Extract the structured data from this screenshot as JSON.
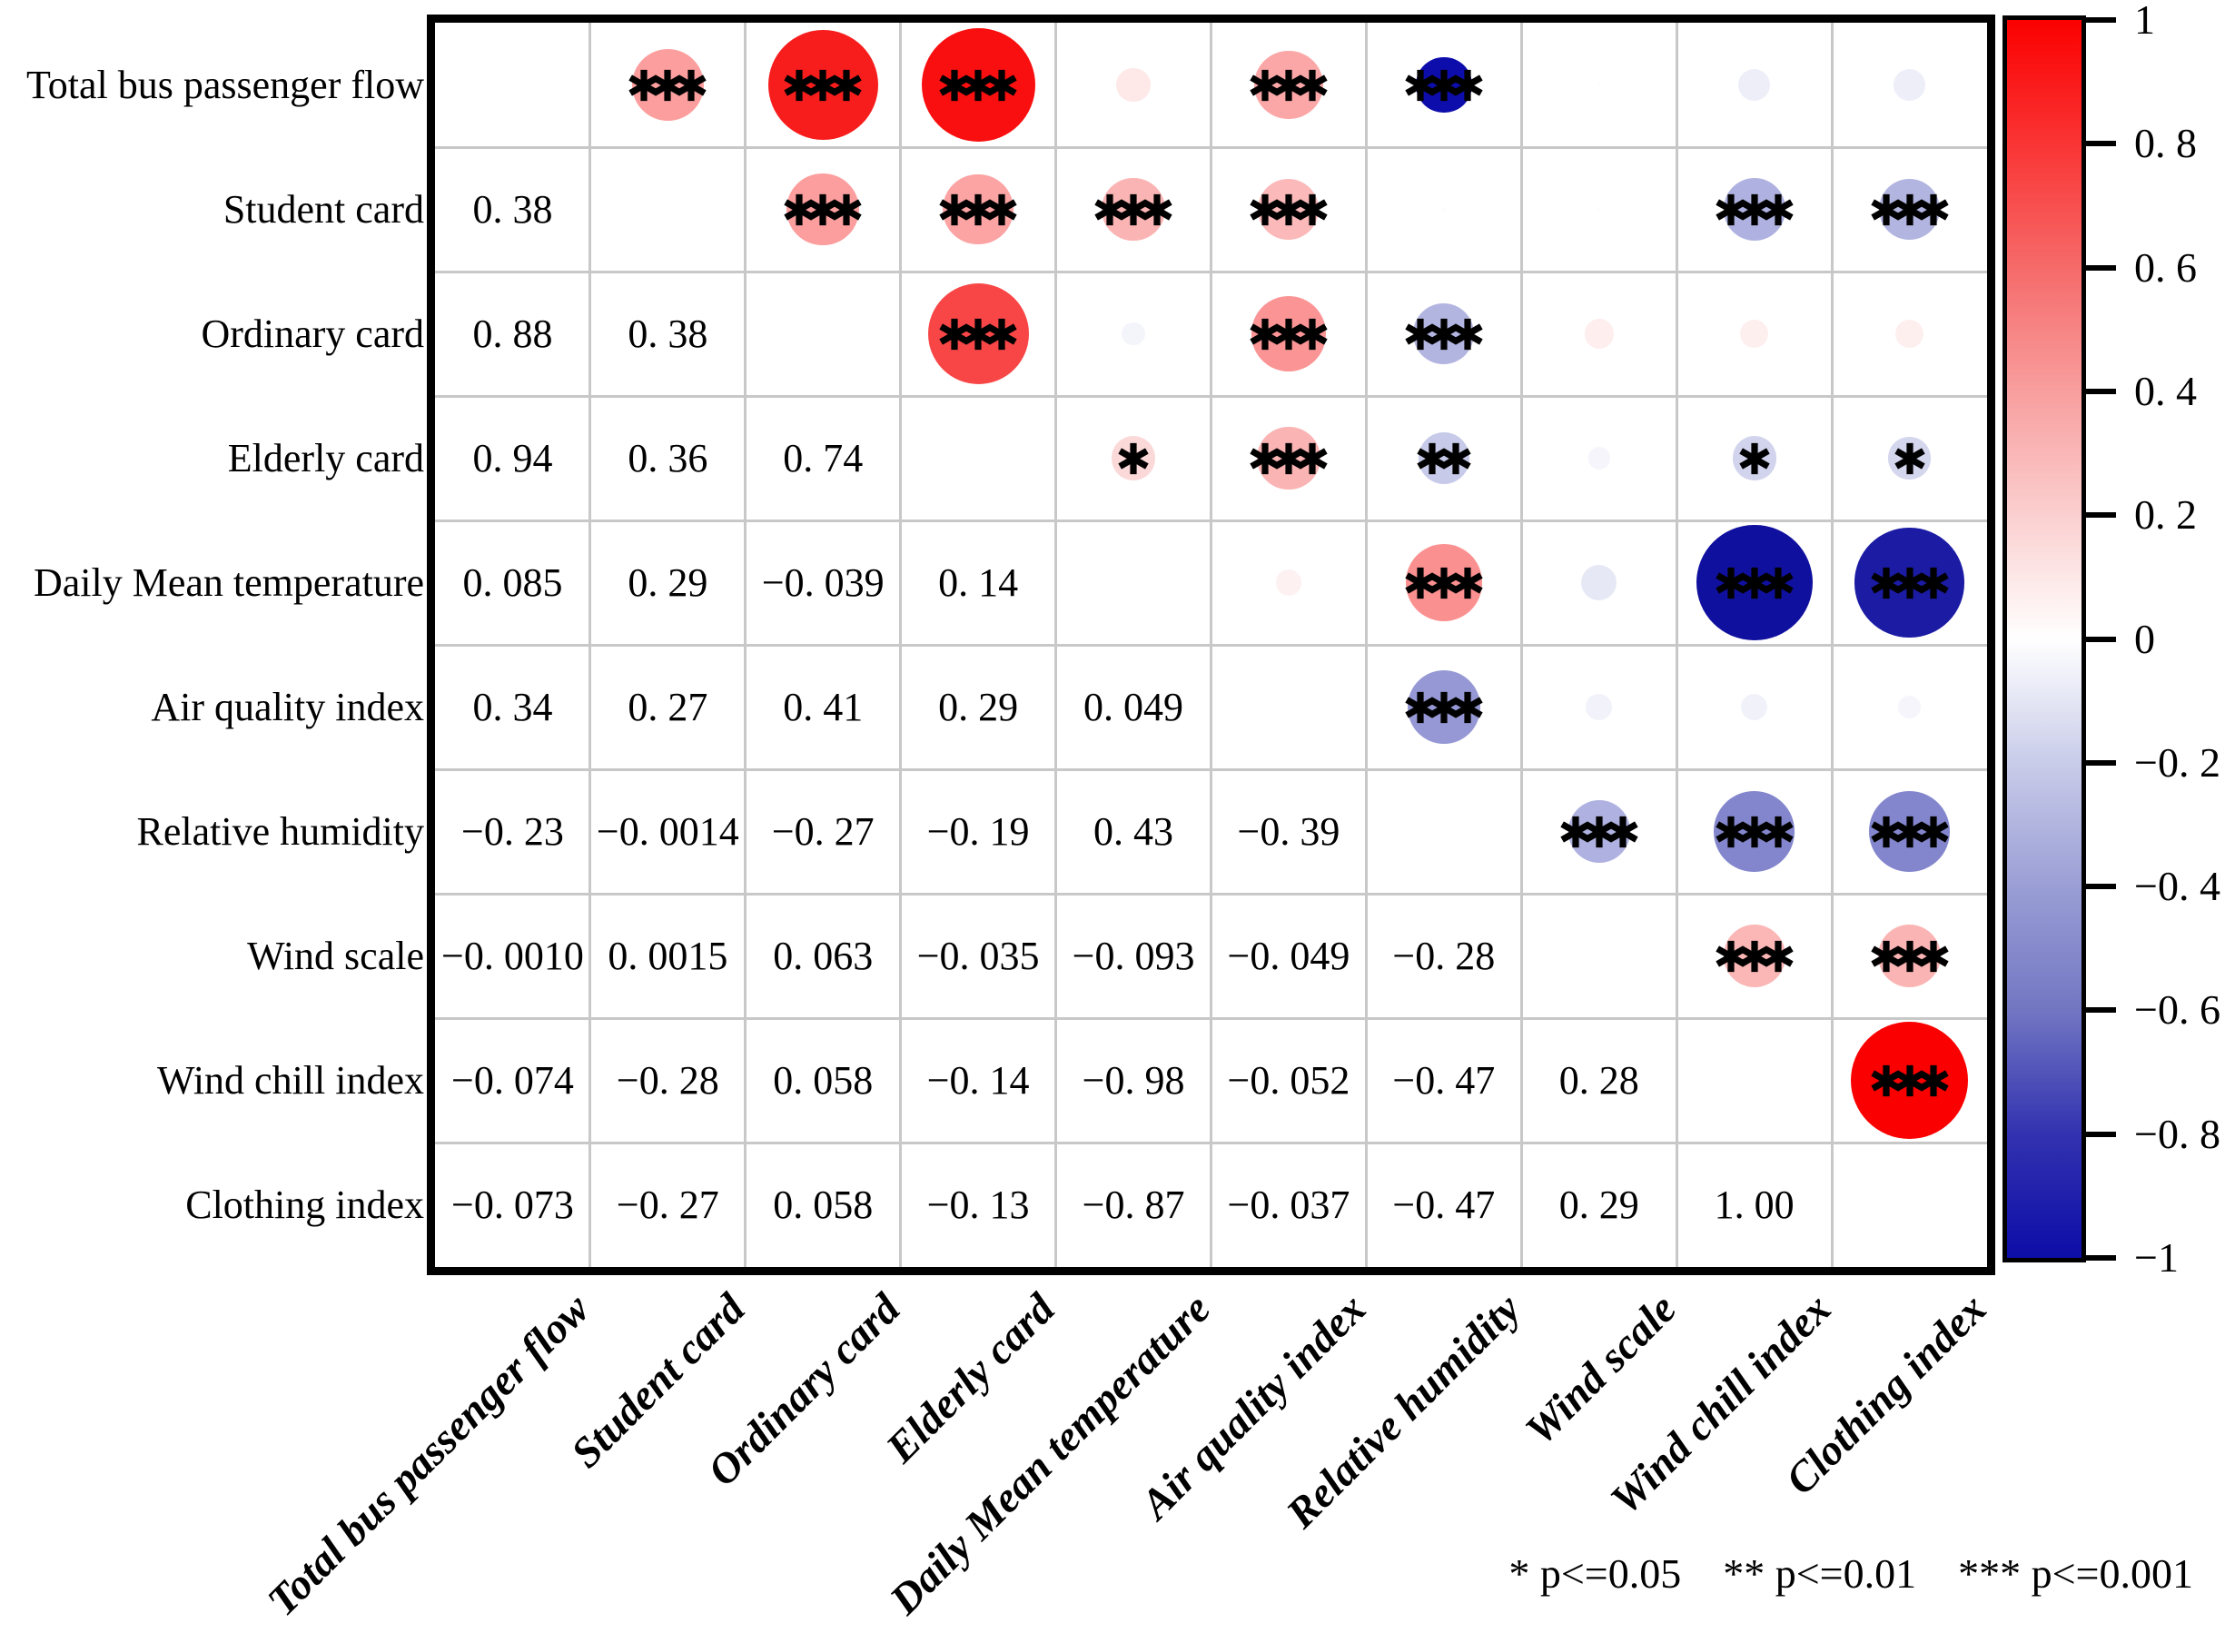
{
  "chart_data": {
    "type": "heatmap",
    "subtype": "correlation-bubble-matrix",
    "title": "",
    "variables": [
      "Total bus passenger flow",
      "Student card",
      "Ordinary card",
      "Elderly card",
      "Daily Mean temperature",
      "Air quality index",
      "Relative humidity",
      "Wind scale",
      "Wind chill index",
      "Clothing index"
    ],
    "y_tick_labels": [
      "Total bus passenger flow",
      "Student card",
      "Ordinary card",
      "Elderly card",
      "Daily Mean temperature",
      "Air quality index",
      "Relative humidity",
      "Wind scale",
      "Wind chill index",
      "Clothing index"
    ],
    "x_tick_labels": [
      "Total bus passenger flow",
      "Student card",
      "Ordinary card",
      "Elderly card",
      "Daily Mean temperature",
      "Air quality index",
      "Relative humidity",
      "Wind scale",
      "Wind chill index",
      "Clothing index"
    ],
    "lower_triangle": {
      "display": [
        [
          "0. 38"
        ],
        [
          "0. 88",
          "0. 38"
        ],
        [
          "0. 94",
          "0. 36",
          "0. 74"
        ],
        [
          "0. 085",
          "0. 29",
          "−0. 039",
          "0. 14"
        ],
        [
          "0. 34",
          "0. 27",
          "0. 41",
          "0. 29",
          "0. 049"
        ],
        [
          "−0. 23",
          "−0. 0014",
          "−0. 27",
          "−0. 19",
          "0. 43",
          "−0. 39"
        ],
        [
          "−0. 0010",
          "0. 0015",
          "0. 063",
          "−0. 035",
          "−0. 093",
          "−0. 049",
          "−0. 28"
        ],
        [
          "−0. 074",
          "−0. 28",
          "0. 058",
          "−0. 14",
          "−0. 98",
          "−0. 052",
          "−0. 47",
          "0. 28"
        ],
        [
          "−0. 073",
          "−0. 27",
          "0. 058",
          "−0. 13",
          "−0. 87",
          "−0. 037",
          "−0. 47",
          "0. 29",
          "1. 00"
        ]
      ],
      "values": [
        [
          0.38
        ],
        [
          0.88,
          0.38
        ],
        [
          0.94,
          0.36,
          0.74
        ],
        [
          0.085,
          0.29,
          -0.039,
          0.14
        ],
        [
          0.34,
          0.27,
          0.41,
          0.29,
          0.049
        ],
        [
          -0.23,
          -0.0014,
          -0.27,
          -0.19,
          0.43,
          -0.39
        ],
        [
          -0.001,
          0.0015,
          0.063,
          -0.035,
          -0.093,
          -0.049,
          -0.28
        ],
        [
          -0.074,
          -0.28,
          0.058,
          -0.14,
          -0.98,
          -0.052,
          -0.47,
          0.28
        ],
        [
          -0.073,
          -0.27,
          0.058,
          -0.13,
          -0.87,
          -0.037,
          -0.47,
          0.29,
          1.0
        ]
      ]
    },
    "bubbles": [
      {
        "row": 1,
        "col": 2,
        "value": 0.38,
        "stars": "***",
        "color": "#FC9E9E"
      },
      {
        "row": 1,
        "col": 3,
        "value": 0.88,
        "stars": "***",
        "color": "#F81D1D"
      },
      {
        "row": 1,
        "col": 4,
        "value": 0.94,
        "stars": "***",
        "color": "#F90F0F"
      },
      {
        "row": 1,
        "col": 5,
        "value": 0.085,
        "stars": "",
        "color": "#FEE8E8"
      },
      {
        "row": 1,
        "col": 6,
        "value": 0.34,
        "stars": "***",
        "color": "#FCA7A7"
      },
      {
        "row": 1,
        "col": 7,
        "value": -0.23,
        "stars": "***",
        "color": "#0D0DAB"
      },
      {
        "row": 1,
        "col": 8,
        "value": -0.001,
        "stars": "",
        "color": "#FDFDFE"
      },
      {
        "row": 1,
        "col": 9,
        "value": -0.074,
        "stars": "",
        "color": "#EDEEF8"
      },
      {
        "row": 1,
        "col": 10,
        "value": -0.073,
        "stars": "",
        "color": "#EDEEF8"
      },
      {
        "row": 2,
        "col": 3,
        "value": 0.38,
        "stars": "***",
        "color": "#FC9E9E"
      },
      {
        "row": 2,
        "col": 4,
        "value": 0.36,
        "stars": "***",
        "color": "#FCA3A3"
      },
      {
        "row": 2,
        "col": 5,
        "value": 0.29,
        "stars": "***",
        "color": "#FBB4B4"
      },
      {
        "row": 2,
        "col": 6,
        "value": 0.27,
        "stars": "***",
        "color": "#FBB9B9"
      },
      {
        "row": 2,
        "col": 7,
        "value": -0.0014,
        "stars": "",
        "color": "#FDFDFE"
      },
      {
        "row": 2,
        "col": 8,
        "value": 0.0015,
        "stars": "",
        "color": "#FEFDFD"
      },
      {
        "row": 2,
        "col": 9,
        "value": -0.28,
        "stars": "***",
        "color": "#AFB2E0"
      },
      {
        "row": 2,
        "col": 10,
        "value": -0.27,
        "stars": "***",
        "color": "#B3B5E1"
      },
      {
        "row": 3,
        "col": 4,
        "value": 0.74,
        "stars": "***",
        "color": "#F84646"
      },
      {
        "row": 3,
        "col": 5,
        "value": -0.039,
        "stars": "",
        "color": "#F4F4FB"
      },
      {
        "row": 3,
        "col": 6,
        "value": 0.41,
        "stars": "***",
        "color": "#FB9494"
      },
      {
        "row": 3,
        "col": 7,
        "value": -0.27,
        "stars": "***",
        "color": "#B3B5E1"
      },
      {
        "row": 3,
        "col": 8,
        "value": 0.063,
        "stars": "",
        "color": "#FEEEEE"
      },
      {
        "row": 3,
        "col": 9,
        "value": 0.058,
        "stars": "",
        "color": "#FEEFEF"
      },
      {
        "row": 3,
        "col": 10,
        "value": 0.058,
        "stars": "",
        "color": "#FEEFEF"
      },
      {
        "row": 4,
        "col": 5,
        "value": 0.14,
        "stars": "*",
        "color": "#FCD9D9"
      },
      {
        "row": 4,
        "col": 6,
        "value": 0.29,
        "stars": "***",
        "color": "#FBB4B4"
      },
      {
        "row": 4,
        "col": 7,
        "value": -0.19,
        "stars": "**",
        "color": "#C7CAE9"
      },
      {
        "row": 4,
        "col": 8,
        "value": -0.035,
        "stars": "",
        "color": "#F5F5FB"
      },
      {
        "row": 4,
        "col": 9,
        "value": -0.14,
        "stars": "*",
        "color": "#D2D4ED"
      },
      {
        "row": 4,
        "col": 10,
        "value": -0.13,
        "stars": "*",
        "color": "#D4D6EE"
      },
      {
        "row": 5,
        "col": 6,
        "value": 0.049,
        "stars": "",
        "color": "#FEF1F1"
      },
      {
        "row": 5,
        "col": 7,
        "value": 0.43,
        "stars": "***",
        "color": "#FB9090"
      },
      {
        "row": 5,
        "col": 8,
        "value": -0.093,
        "stars": "",
        "color": "#E7E8F5"
      },
      {
        "row": 5,
        "col": 9,
        "value": -0.98,
        "stars": "***",
        "color": "#10109F"
      },
      {
        "row": 5,
        "col": 10,
        "value": -0.87,
        "stars": "***",
        "color": "#1B1BA4"
      },
      {
        "row": 6,
        "col": 7,
        "value": -0.39,
        "stars": "***",
        "color": "#9598D4"
      },
      {
        "row": 6,
        "col": 8,
        "value": -0.049,
        "stars": "",
        "color": "#F2F2FA"
      },
      {
        "row": 6,
        "col": 9,
        "value": -0.052,
        "stars": "",
        "color": "#F1F2F9"
      },
      {
        "row": 6,
        "col": 10,
        "value": -0.037,
        "stars": "",
        "color": "#F5F5FB"
      },
      {
        "row": 7,
        "col": 8,
        "value": -0.28,
        "stars": "***",
        "color": "#AFB2E0"
      },
      {
        "row": 7,
        "col": 9,
        "value": -0.47,
        "stars": "***",
        "color": "#8386CC"
      },
      {
        "row": 7,
        "col": 10,
        "value": -0.47,
        "stars": "***",
        "color": "#8386CC"
      },
      {
        "row": 8,
        "col": 9,
        "value": 0.28,
        "stars": "***",
        "color": "#FBB6B6"
      },
      {
        "row": 8,
        "col": 10,
        "value": 0.29,
        "stars": "***",
        "color": "#FBB4B4"
      },
      {
        "row": 9,
        "col": 10,
        "value": 1.0,
        "stars": "***",
        "color": "#FA0000"
      }
    ],
    "size_encoding": "bubble area proportional to |r|; diameter = 129px at |r| = 1",
    "colorbar": {
      "min": -1,
      "max": 1,
      "tick_labels": [
        "1",
        "0. 8",
        "0. 6",
        "0. 4",
        "0. 2",
        "0",
        "−0. 2",
        "−0. 4",
        "−0. 6",
        "−0. 8",
        "−1"
      ],
      "gradient_stops": [
        [
          "0%",
          "#FB0000"
        ],
        [
          "10%",
          "#FA3434"
        ],
        [
          "20%",
          "#F66A6A"
        ],
        [
          "30%",
          "#F89E9E"
        ],
        [
          "40%",
          "#FBCFCF"
        ],
        [
          "50%",
          "#FFFFFF"
        ],
        [
          "60%",
          "#C9CCE9"
        ],
        [
          "70%",
          "#9A9ED5"
        ],
        [
          "80%",
          "#7276C2"
        ],
        [
          "90%",
          "#3232B0"
        ],
        [
          "100%",
          "#0D0DA8"
        ]
      ]
    },
    "significance_legend": [
      "* p<=0.05",
      "** p<=0.01",
      "*** p<=0.001"
    ],
    "colors": {
      "grid": "#C8C8C8",
      "frame": "#000000",
      "background": "#FFFFFF",
      "stars": "#000000",
      "text": "#000000"
    },
    "layout_hints": {
      "grid": "on",
      "legend_position": "bottom-right",
      "colorbar_position": "right",
      "x_label_rotation_deg": 45
    }
  }
}
